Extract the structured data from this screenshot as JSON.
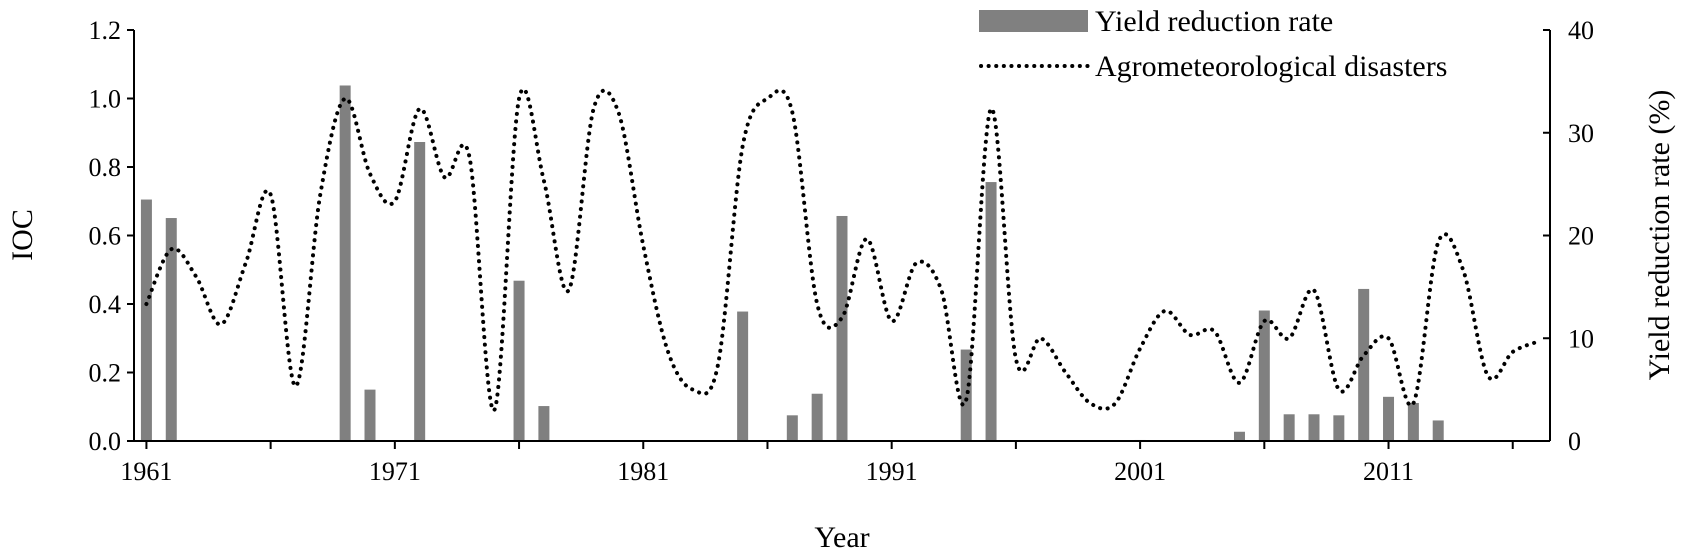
{
  "chart_data": {
    "type": "bar+line",
    "title": "",
    "xlabel": "Year",
    "ylabel_left": "IOC",
    "ylabel_right": "Yield reduction rate (%)",
    "xlim": [
      1960.5,
      2017.5
    ],
    "ylim_left": [
      0,
      1.2
    ],
    "ylim_right": [
      0,
      40
    ],
    "x_ticks": [
      1961,
      1971,
      1981,
      1991,
      2001,
      2011
    ],
    "y_ticks_left": [
      "0.0",
      "0.2",
      "0.4",
      "0.6",
      "0.8",
      "1.0",
      "1.2"
    ],
    "y_ticks_right": [
      "0",
      "10",
      "20",
      "30",
      "40"
    ],
    "grid": false,
    "legend_position": "top-right",
    "series": [
      {
        "name": "Yield reduction rate",
        "type": "bar",
        "axis": "right",
        "color": "#808080",
        "points": [
          [
            1961,
            23.5
          ],
          [
            1962,
            21.7
          ],
          [
            1969,
            34.6
          ],
          [
            1970,
            5.0
          ],
          [
            1972,
            29.1
          ],
          [
            1976,
            15.6
          ],
          [
            1977,
            3.4
          ],
          [
            1985,
            12.6
          ],
          [
            1987,
            2.5
          ],
          [
            1988,
            4.6
          ],
          [
            1989,
            21.9
          ],
          [
            1994,
            8.9
          ],
          [
            1995,
            25.2
          ],
          [
            2001,
            0.1
          ],
          [
            2005,
            0.9
          ],
          [
            2006,
            12.7
          ],
          [
            2007,
            2.6
          ],
          [
            2008,
            2.6
          ],
          [
            2009,
            2.5
          ],
          [
            2010,
            14.8
          ],
          [
            2011,
            4.3
          ],
          [
            2012,
            3.7
          ],
          [
            2013,
            2.0
          ]
        ]
      },
      {
        "name": "Agrometeorological disasters",
        "type": "line",
        "style": "dotted",
        "axis": "left",
        "color": "#000000",
        "points": [
          [
            1961,
            0.4
          ],
          [
            1962,
            0.56
          ],
          [
            1963,
            0.48
          ],
          [
            1964,
            0.34
          ],
          [
            1965,
            0.52
          ],
          [
            1966,
            0.72
          ],
          [
            1967,
            0.16
          ],
          [
            1968,
            0.72
          ],
          [
            1969,
            1.0
          ],
          [
            1970,
            0.78
          ],
          [
            1971,
            0.7
          ],
          [
            1972,
            0.97
          ],
          [
            1973,
            0.77
          ],
          [
            1974,
            0.83
          ],
          [
            1975,
            0.09
          ],
          [
            1976,
            1.0
          ],
          [
            1977,
            0.76
          ],
          [
            1978,
            0.44
          ],
          [
            1979,
            0.97
          ],
          [
            1980,
            0.96
          ],
          [
            1981,
            0.57
          ],
          [
            1982,
            0.26
          ],
          [
            1983,
            0.15
          ],
          [
            1984,
            0.22
          ],
          [
            1985,
            0.86
          ],
          [
            1986,
            1.0
          ],
          [
            1987,
            0.96
          ],
          [
            1988,
            0.4
          ],
          [
            1989,
            0.36
          ],
          [
            1990,
            0.59
          ],
          [
            1991,
            0.35
          ],
          [
            1992,
            0.52
          ],
          [
            1993,
            0.44
          ],
          [
            1994,
            0.12
          ],
          [
            1995,
            0.97
          ],
          [
            1996,
            0.24
          ],
          [
            1997,
            0.3
          ],
          [
            1998,
            0.2
          ],
          [
            1999,
            0.11
          ],
          [
            2000,
            0.11
          ],
          [
            2001,
            0.27
          ],
          [
            2002,
            0.38
          ],
          [
            2003,
            0.31
          ],
          [
            2004,
            0.32
          ],
          [
            2005,
            0.17
          ],
          [
            2006,
            0.35
          ],
          [
            2007,
            0.3
          ],
          [
            2008,
            0.44
          ],
          [
            2009,
            0.15
          ],
          [
            2010,
            0.25
          ],
          [
            2011,
            0.3
          ],
          [
            2012,
            0.11
          ],
          [
            2013,
            0.58
          ],
          [
            2014,
            0.5
          ],
          [
            2015,
            0.19
          ],
          [
            2016,
            0.26
          ],
          [
            2017,
            0.29
          ]
        ]
      }
    ]
  }
}
